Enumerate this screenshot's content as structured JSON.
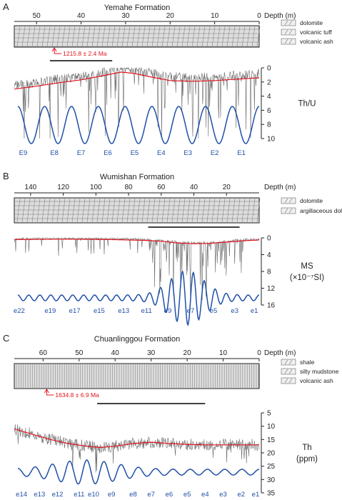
{
  "colors": {
    "axis": "#222222",
    "signal": "#6a6a6a",
    "trend": "#e0141e",
    "cycle": "#1f4fa8",
    "annotation": "#e0141e",
    "column_fill": "#dedede"
  },
  "chart_data": [
    {
      "type": "line",
      "panel_letter": "A",
      "title": "Yemahe Formation",
      "depth_label": "Depth (m)",
      "depth_ticks": [
        "50",
        "40",
        "30",
        "20",
        "10",
        "0"
      ],
      "depth_range": [
        55,
        0
      ],
      "lithology_legend": [
        "dolomite",
        "volcanic tuff",
        "volcanic ash"
      ],
      "age_annotation": "1215.8 ± 2.4 Ma",
      "age_depth": 46,
      "black_bar_depth": [
        47,
        33
      ],
      "ylabel": [
        "Th/U"
      ],
      "y_ticks": [
        "0",
        "2",
        "4",
        "6",
        "8",
        "10"
      ],
      "ylim": [
        0,
        10
      ],
      "y_inverted": true,
      "trend_line": {
        "depth": [
          55,
          50,
          45,
          40,
          35,
          31,
          28,
          25,
          20,
          15,
          10,
          5,
          0
        ],
        "value": [
          3.0,
          2.6,
          2.1,
          1.7,
          1.1,
          0.6,
          0.8,
          1.2,
          1.8,
          1.9,
          1.8,
          1.6,
          1.4
        ]
      },
      "cycle_labels": [
        "E9",
        "E8",
        "E7",
        "E6",
        "E5",
        "E4",
        "E3",
        "E2",
        "E1"
      ],
      "cycle_label_depths": [
        53,
        46,
        40,
        34,
        28,
        22,
        16,
        10,
        4
      ]
    },
    {
      "type": "line",
      "panel_letter": "B",
      "title": "Wumishan Formation",
      "depth_label": "Depth (m)",
      "depth_ticks": [
        "140",
        "120",
        "100",
        "80",
        "60",
        "40",
        "20"
      ],
      "depth_range": [
        150,
        0
      ],
      "lithology_legend": [
        "dolomite",
        "argillaceous dolomite"
      ],
      "black_bar_depth": [
        68,
        12
      ],
      "ylabel": [
        "MS",
        "(×10⁻⁷SI)"
      ],
      "y_ticks": [
        "0",
        "4",
        "8",
        "12",
        "16"
      ],
      "ylim": [
        0,
        16
      ],
      "y_inverted": true,
      "trend_line": {
        "depth": [
          150,
          120,
          90,
          70,
          60,
          50,
          40,
          30,
          20,
          10,
          0
        ],
        "value": [
          0.4,
          0.3,
          0.4,
          0.6,
          0.8,
          1.2,
          1.4,
          1.3,
          1.0,
          0.7,
          0.5
        ]
      },
      "cycle_labels": [
        "e22",
        "e19",
        "e17",
        "e15",
        "e13",
        "e11",
        "e9",
        "e7",
        "e5",
        "e3",
        "e1"
      ],
      "cycle_label_depths": [
        147,
        128,
        113,
        98,
        83,
        69,
        56,
        42,
        28,
        15,
        3
      ]
    },
    {
      "type": "line",
      "panel_letter": "C",
      "title": "Chuanlinggou Formation",
      "depth_label": "Depth (m)",
      "depth_ticks": [
        "60",
        "50",
        "40",
        "30",
        "20",
        "10",
        "0"
      ],
      "depth_range": [
        68,
        0
      ],
      "lithology_legend": [
        "shale",
        "silty mudstone",
        "volcanic ash"
      ],
      "age_annotation": "1634.8 ± 6.9 Ma",
      "age_depth": 59,
      "black_bar_depth": [
        45,
        15
      ],
      "ylabel": [
        "Th",
        "(ppm)"
      ],
      "y_ticks": [
        "5",
        "10",
        "15",
        "20",
        "25",
        "30",
        "35"
      ],
      "ylim": [
        5,
        35
      ],
      "y_inverted": true,
      "trend_line": {
        "depth": [
          68,
          63,
          58,
          53,
          48,
          44,
          40,
          35,
          30,
          25,
          20,
          15,
          10,
          5,
          0
        ],
        "value": [
          11,
          13,
          15,
          16.5,
          17.5,
          18,
          17.5,
          16.5,
          16,
          16.5,
          16.8,
          17,
          17,
          17,
          17
        ]
      },
      "cycle_labels": [
        "e14",
        "e13",
        "e12",
        "e11",
        "e10",
        "e9",
        "e8",
        "e7",
        "e6",
        "e5",
        "e4",
        "e3",
        "e2",
        "e1"
      ],
      "cycle_label_depths": [
        66,
        61,
        56,
        50,
        46,
        41,
        35,
        30,
        25,
        20,
        15,
        10,
        5,
        1
      ]
    }
  ]
}
